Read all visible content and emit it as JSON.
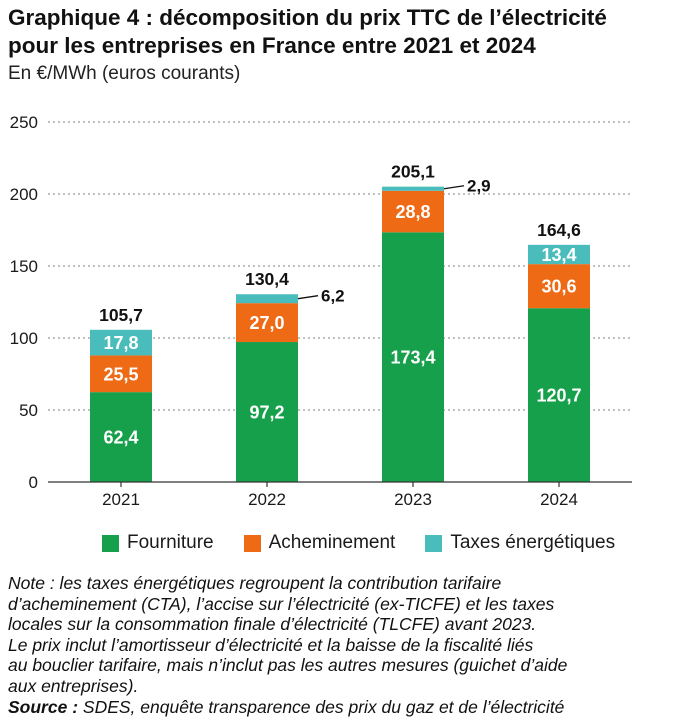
{
  "header": {
    "title_line1": "Graphique 4 : décomposition du prix TTC de l’électricité",
    "title_line2": "pour les entreprises en France entre 2021 et 2024",
    "subtitle": "En €/MWh (euros courants)"
  },
  "chart_data": {
    "type": "bar",
    "stacked": true,
    "categories": [
      "2021",
      "2022",
      "2023",
      "2024"
    ],
    "series": [
      {
        "name": "Fourniture",
        "color": "#17a04b",
        "values": [
          62.4,
          97.2,
          173.4,
          120.7
        ],
        "labels": [
          "62,4",
          "97,2",
          "173,4",
          "120,7"
        ]
      },
      {
        "name": "Acheminement",
        "color": "#ee6a14",
        "values": [
          25.5,
          27.0,
          28.8,
          30.6
        ],
        "labels": [
          "25,5",
          "27,0",
          "28,8",
          "30,6"
        ]
      },
      {
        "name": "Taxes énergétiques",
        "color": "#4bbcbc",
        "values": [
          17.8,
          6.2,
          2.9,
          13.4
        ],
        "labels": [
          "17,8",
          "6,2",
          "2,9",
          "13,4"
        ]
      }
    ],
    "totals": [
      "105,7",
      "130,4",
      "205,1",
      "164,6"
    ],
    "ylim": [
      0,
      250
    ],
    "yticks": [
      0,
      50,
      100,
      150,
      200,
      250
    ],
    "grid": true,
    "legend_position": "bottom"
  },
  "notes": {
    "lines": [
      "Note : les taxes énergétiques regroupent la contribution tarifaire",
      "d’acheminement (CTA), l’accise sur l’électricité (ex-TICFE) et les taxes",
      "locales sur la consommation finale d’électricité (TLCFE) avant 2023.",
      "Le prix inclut l’amortisseur d’électricité et la baisse de la fiscalité liés",
      "au bouclier tarifaire, mais n’inclut pas les autres mesures (guichet d’aide",
      "aux entreprises)."
    ],
    "source_label": "Source :",
    "source_text": " SDES, enquête transparence des prix du gaz et de l’électricité"
  }
}
